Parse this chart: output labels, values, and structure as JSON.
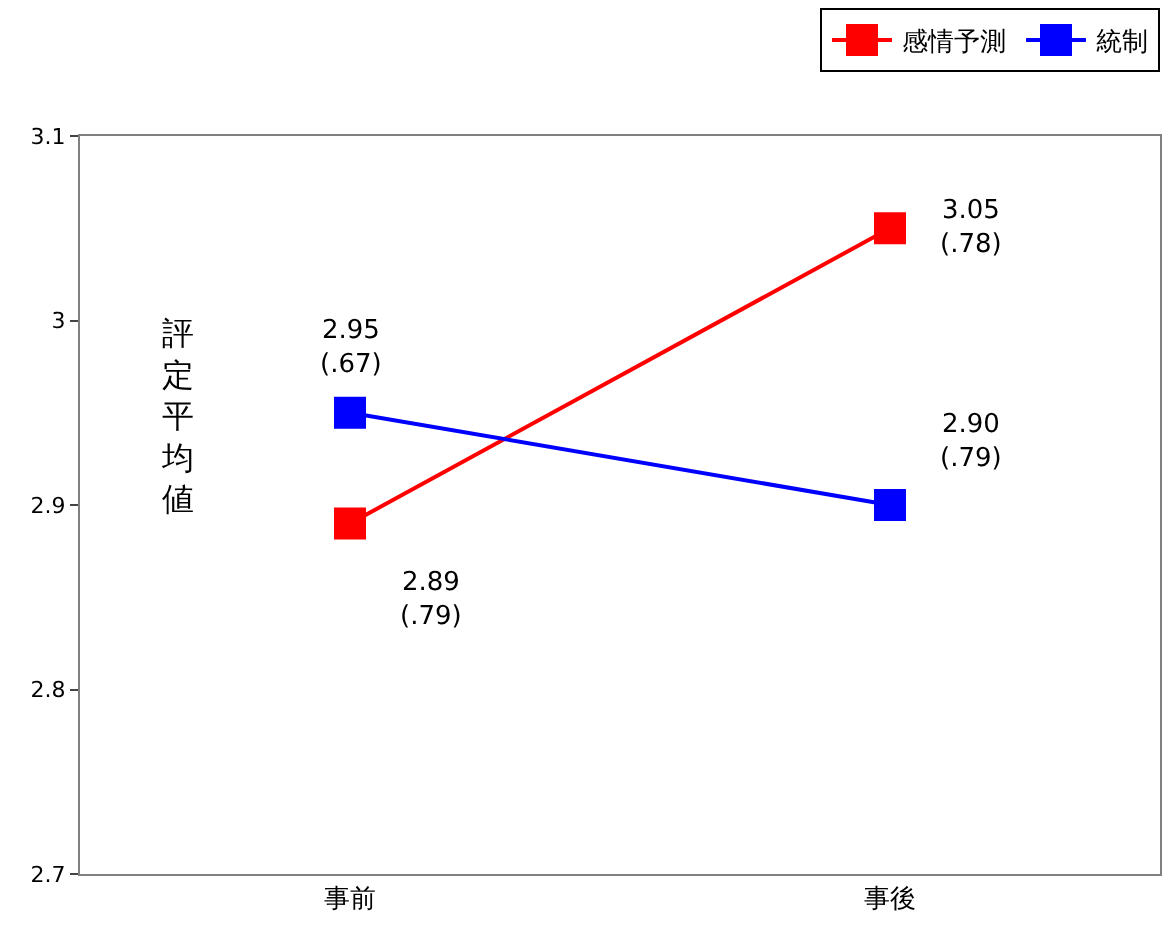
{
  "chart_data": {
    "type": "line",
    "ylabel": "評定平均値",
    "categories": [
      "事前",
      "事後"
    ],
    "series": [
      {
        "name": "感情予測",
        "color": "#ff0000",
        "values": [
          2.89,
          3.05
        ],
        "value_labels": [
          "2.89\n(.79)",
          "3.05\n(.78)"
        ]
      },
      {
        "name": "統制",
        "color": "#0000ff",
        "values": [
          2.95,
          2.9
        ],
        "value_labels": [
          "2.95\n(.67)",
          "2.90\n(.79)"
        ]
      }
    ],
    "ylim": [
      2.7,
      3.1
    ],
    "yticks": [
      2.7,
      2.8,
      2.9,
      3,
      3.1
    ],
    "legend": "top right",
    "marker": "square",
    "line_style": "solid"
  }
}
